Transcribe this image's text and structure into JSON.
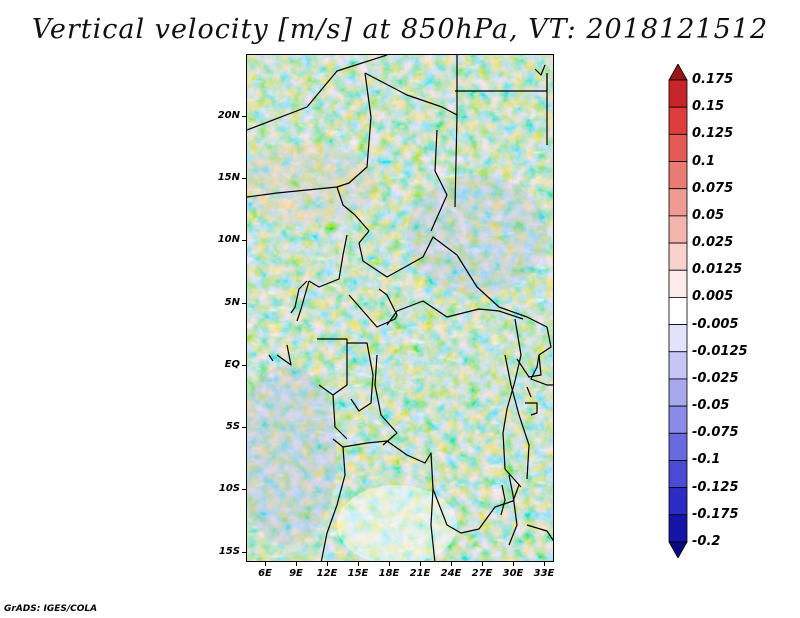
{
  "title": "Vertical velocity [m/s] at 850hPa, VT: 2018121512",
  "credit": "GrADS: IGES/COLA",
  "map": {
    "lat_labels": [
      "20N",
      "15N",
      "10N",
      "5N",
      "EQ",
      "5S",
      "10S",
      "15S"
    ],
    "lon_labels": [
      "6E",
      "9E",
      "12E",
      "15E",
      "18E",
      "21E",
      "24E",
      "27E",
      "30E",
      "33E"
    ]
  },
  "colorbar": {
    "labels": [
      "0.175",
      "0.15",
      "0.125",
      "0.1",
      "0.075",
      "0.05",
      "0.025",
      "0.0125",
      "0.005",
      "-0.005",
      "-0.0125",
      "-0.025",
      "-0.05",
      "-0.075",
      "-0.1",
      "-0.125",
      "-0.175",
      "-0.2"
    ],
    "colors": [
      "#9b1418",
      "#c8252b",
      "#df3c3c",
      "#e45a55",
      "#e97b74",
      "#ef9a92",
      "#f4b4ae",
      "#f9d2cd",
      "#fcebe8",
      "#ffffff",
      "#e2e2fb",
      "#c6c6f5",
      "#a8a8ef",
      "#8a8ae8",
      "#6a6ae0",
      "#4a4ad4",
      "#2c2cc4",
      "#1414a6",
      "#0a0a80"
    ]
  }
}
